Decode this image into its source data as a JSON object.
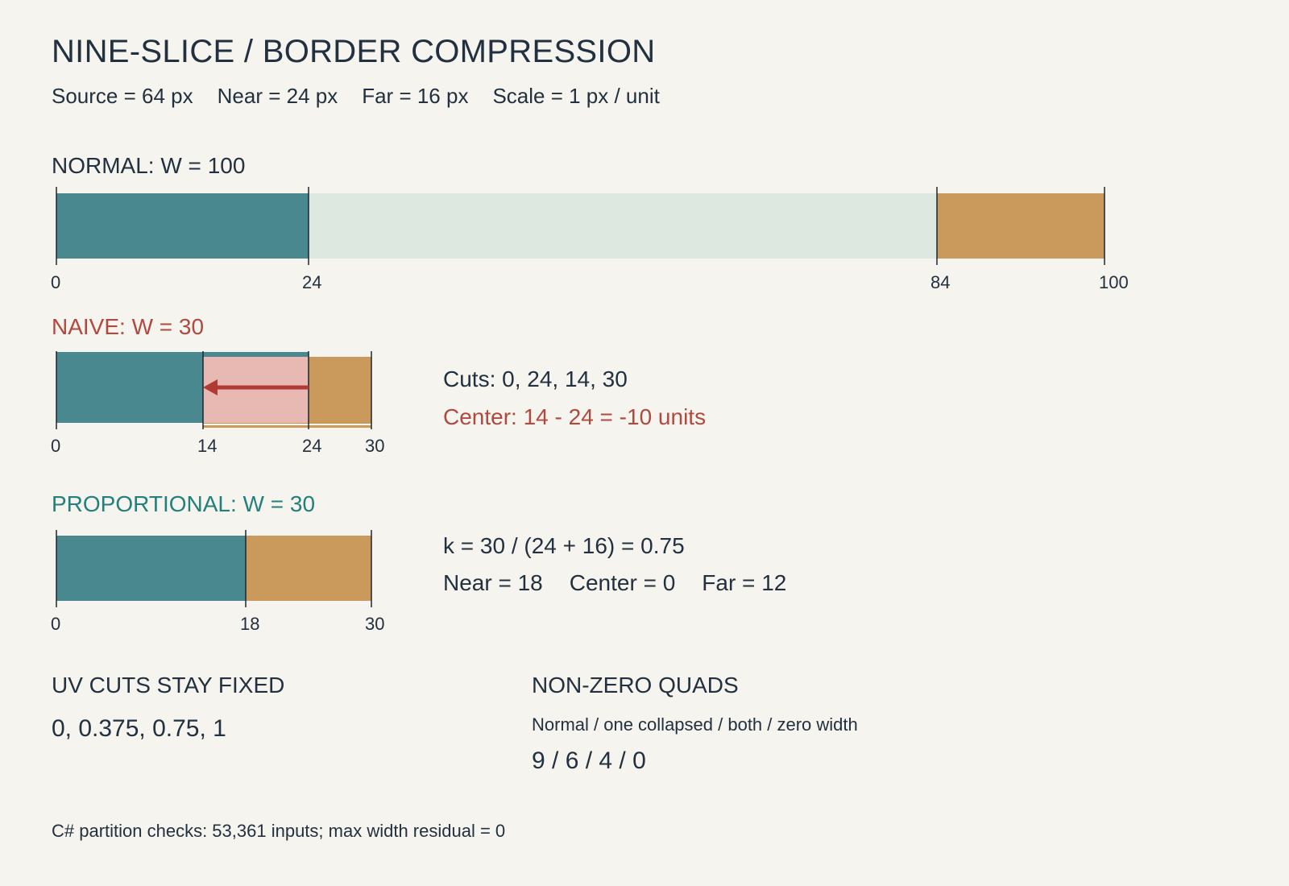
{
  "title": "NINE-SLICE / BORDER COMPRESSION",
  "params": {
    "source": "Source = 64 px",
    "near": "Near = 24 px",
    "far": "Far = 16 px",
    "scale": "Scale = 1 px / unit"
  },
  "normal": {
    "label": "NORMAL: W = 100",
    "width": 100,
    "segments": [
      {
        "part": "near",
        "from": 0,
        "to": 24,
        "color": "#4a8890"
      },
      {
        "part": "center",
        "from": 24,
        "to": 84,
        "color": "#dce8e0"
      },
      {
        "part": "far",
        "from": 84,
        "to": 100,
        "color": "#c99a5b"
      }
    ],
    "ticks": [
      "0",
      "24",
      "84",
      "100"
    ]
  },
  "naive": {
    "label": "NAIVE: W = 30",
    "width": 30,
    "near_to": 24,
    "far_from": 14,
    "ticks": [
      "0",
      "14",
      "24",
      "30"
    ],
    "cuts_text": "Cuts: 0, 24, 14, 30",
    "center_text": "Center: 14 - 24 = -10 units",
    "overlap_color": "#e8b8b2",
    "arrow_color": "#b03a34"
  },
  "proportional": {
    "label": "PROPORTIONAL: W = 30",
    "width": 30,
    "segments": [
      {
        "part": "near",
        "from": 0,
        "to": 18,
        "color": "#4a8890"
      },
      {
        "part": "far",
        "from": 18,
        "to": 30,
        "color": "#c99a5b"
      }
    ],
    "ticks": [
      "0",
      "18",
      "30"
    ],
    "k_text": "k = 30 / (24 + 16) = 0.75",
    "result_text": {
      "near": "Near = 18",
      "center": "Center = 0",
      "far": "Far = 12"
    }
  },
  "uv": {
    "heading": "UV CUTS STAY FIXED",
    "value": "0, 0.375, 0.75, 1"
  },
  "quads": {
    "heading": "NON-ZERO QUADS",
    "sub": "Normal / one collapsed / both / zero width",
    "value": "9 / 6 / 4 / 0"
  },
  "footer": "C# partition checks: 53,361 inputs; max width residual = 0"
}
